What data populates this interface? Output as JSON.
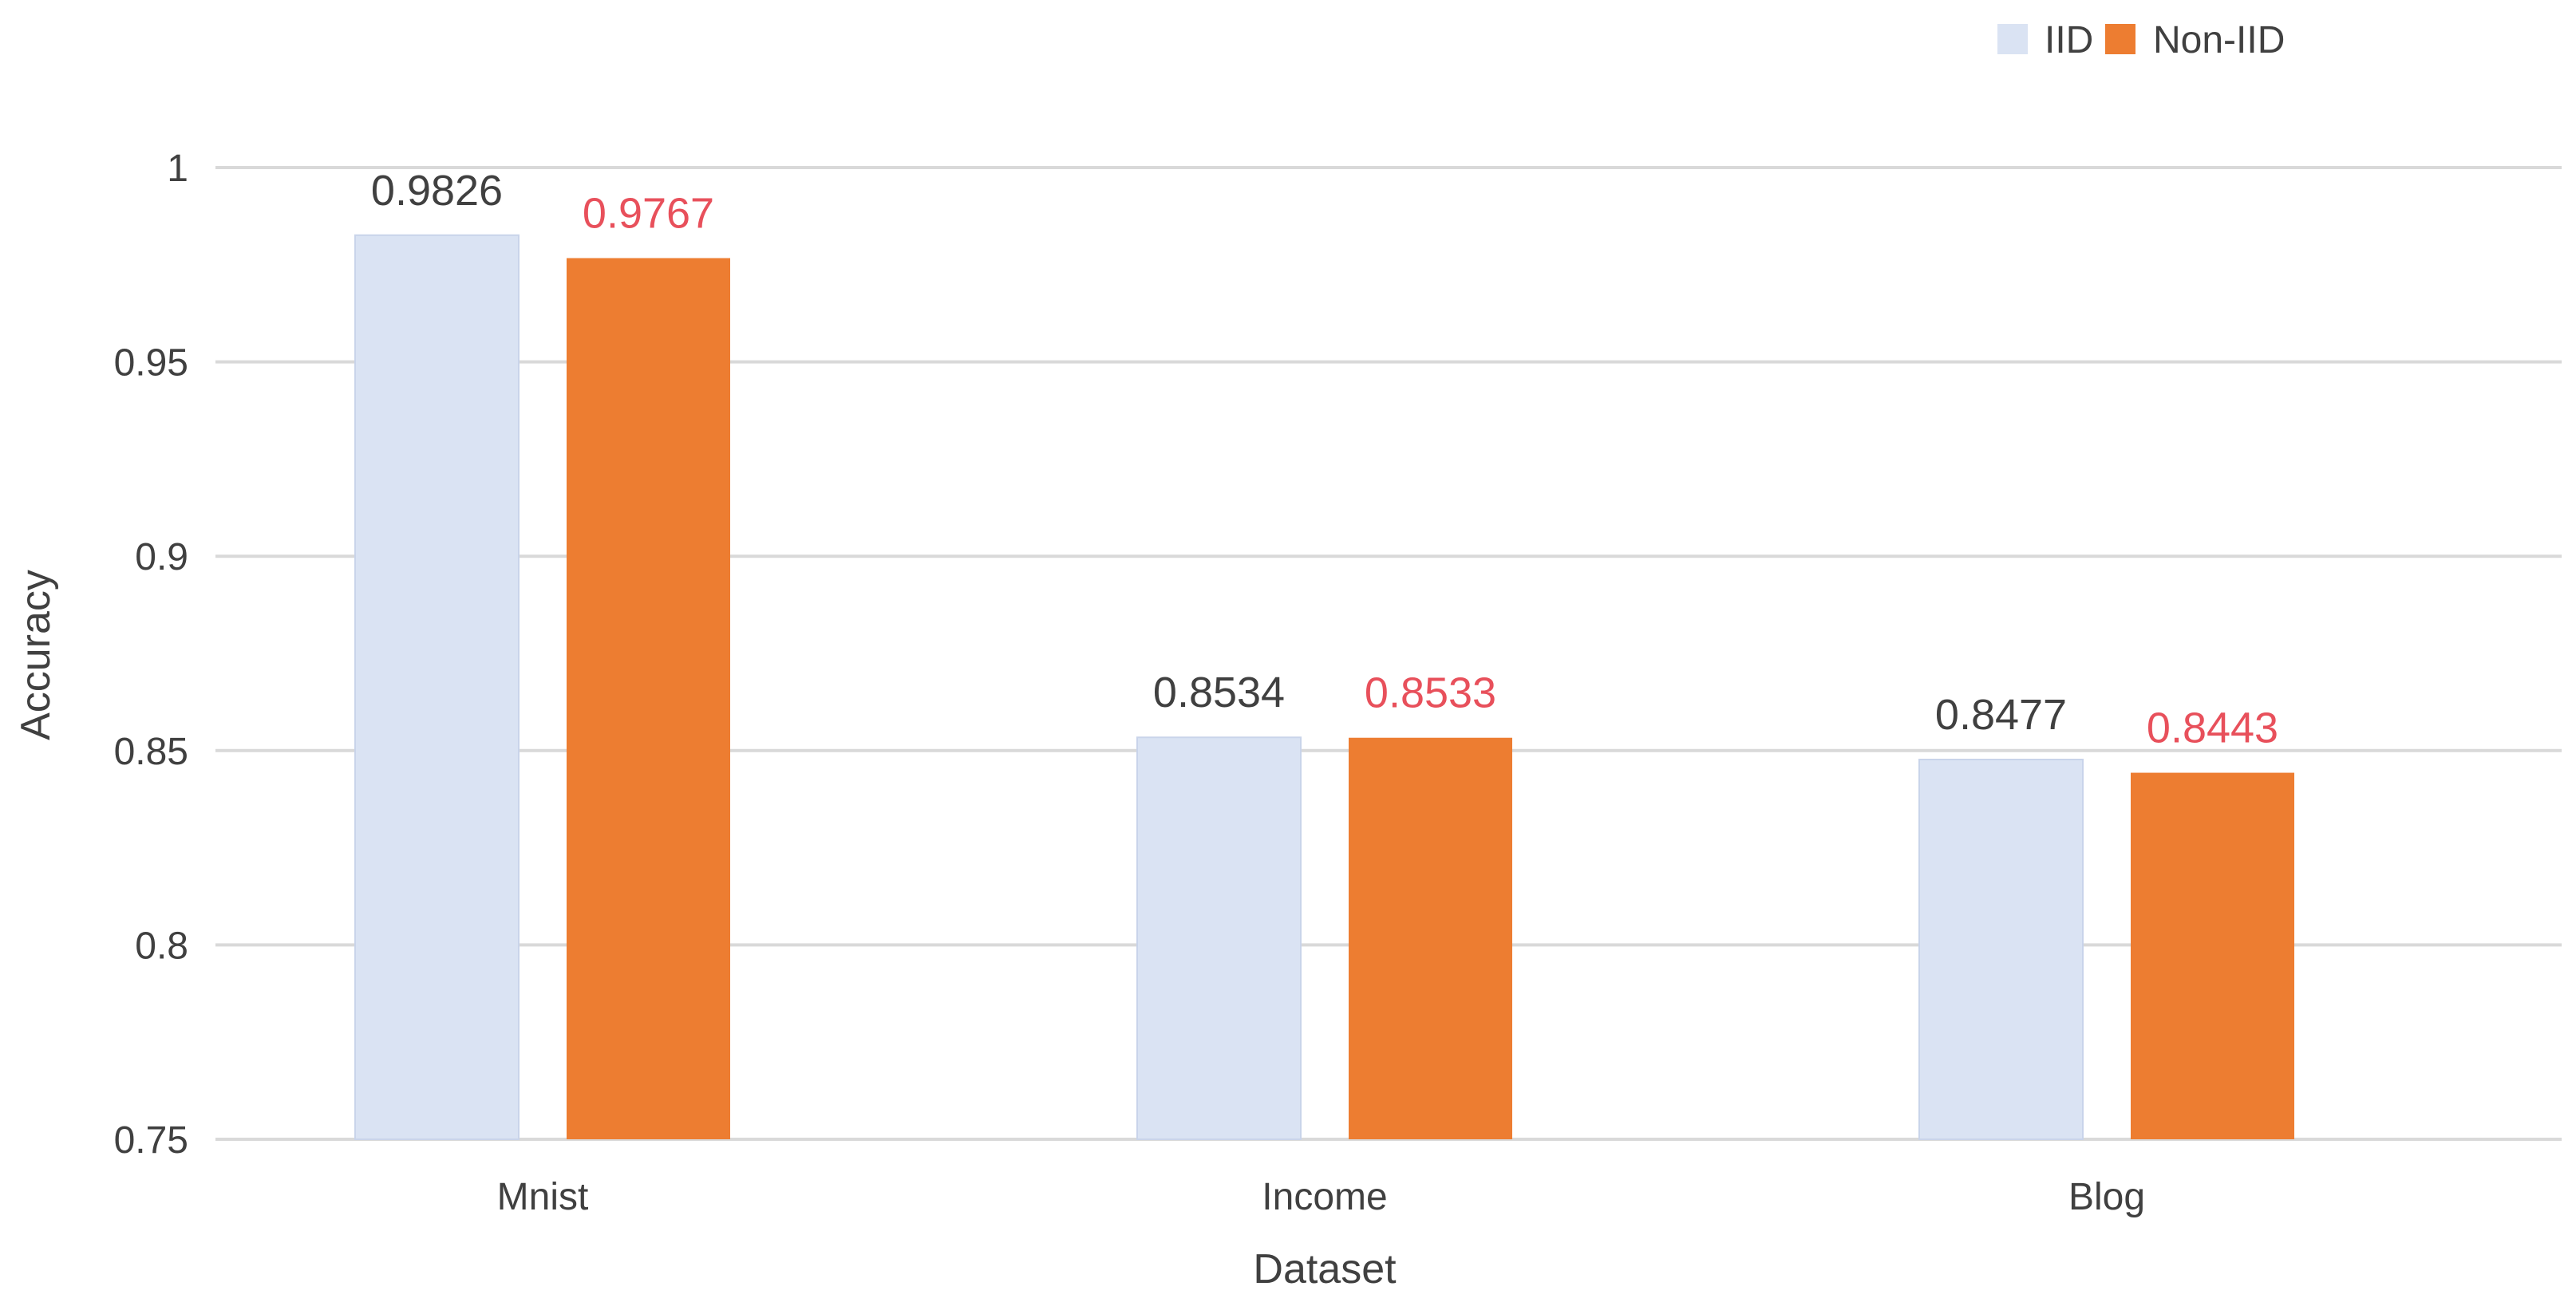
{
  "chart_data": {
    "type": "bar",
    "title": "",
    "xlabel": "Dataset",
    "ylabel": "Accuracy",
    "categories": [
      "Mnist",
      "Income",
      "Blog"
    ],
    "series": [
      {
        "name": "IID",
        "color": "#DAE3F3",
        "label_color": "#404040",
        "values": [
          0.9826,
          0.8534,
          0.8477
        ],
        "labels": [
          "0.9826",
          "0.8534",
          "0.8477"
        ]
      },
      {
        "name": "Non-IID",
        "color": "#ED7D31",
        "label_color": "#E8505B",
        "values": [
          0.9767,
          0.8533,
          0.8443
        ],
        "labels": [
          "0.9767",
          "0.8533",
          "0.8443"
        ]
      }
    ],
    "ylim": [
      0.75,
      1
    ],
    "yticks": [
      0.75,
      0.8,
      0.85,
      0.9,
      0.95,
      1
    ],
    "ytick_labels": [
      "0.75",
      "0.8",
      "0.85",
      "0.9",
      "0.95",
      "1"
    ],
    "grid": true,
    "gridline_color": "#D9D9D9",
    "legend_position": "top-right"
  }
}
